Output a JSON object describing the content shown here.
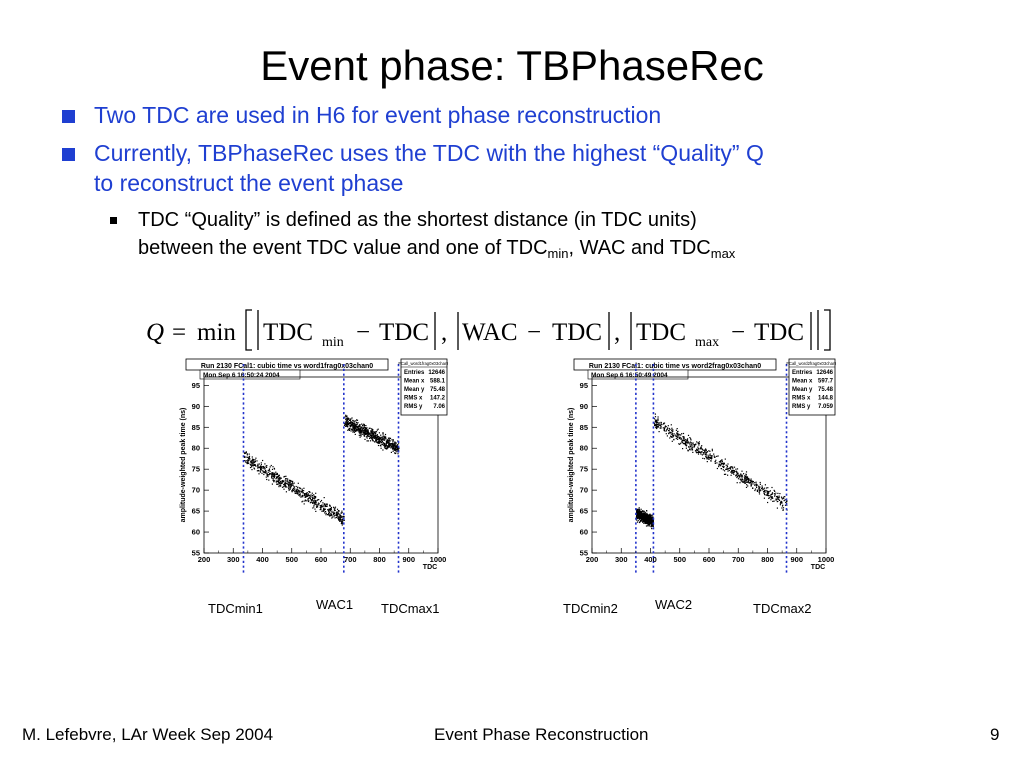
{
  "slide": {
    "title": "Event phase: TBPhaseRec",
    "bullet1": "Two TDC are used in H6 for event phase reconstruction",
    "bullet2_line1": "Currently, TBPhaseRec uses the TDC with the highest “Quality” Q",
    "bullet2_line2": "to reconstruct the event phase",
    "sub1_line1": "TDC “Quality” is defined as the shortest distance (in TDC units)",
    "sub1_line2_a": "between the event TDC value and one of TDC",
    "sub1_min": "min",
    "sub1_mid": ", WAC and TDC",
    "sub1_max": "max"
  },
  "formula": {
    "q": "Q",
    "eq": "=",
    "minfn": "min",
    "tdc": "TDC",
    "min": "min",
    "max": "max",
    "minus": "−",
    "wac": "WAC",
    "comma": ","
  },
  "plot1": {
    "title": "Run 2130 FCal1: cubic time vs word1frag0x03chan0",
    "date": "Mon Sep  6 16:50:24 2004",
    "stats_header": "FCall_word1frag0x03chan0",
    "stats": [
      {
        "k": "Entries",
        "v": "12646"
      },
      {
        "k": "Mean x",
        "v": "588.1"
      },
      {
        "k": "Mean y",
        "v": "75.48"
      },
      {
        "k": "RMS x",
        "v": "147.2"
      },
      {
        "k": "RMS y",
        "v": "7.06"
      }
    ],
    "ylabel": "amplitude-weighted peak time (ns)",
    "xlabel": "TDC",
    "labels": {
      "tdcmin": "TDCmin1",
      "wac": "WAC1",
      "tdcmax": "TDCmax1"
    },
    "lines_x": [
      335,
      678,
      865
    ],
    "segments": [
      {
        "x0": 335,
        "x1": 678,
        "y0": 78,
        "y1": 63,
        "sy": 1.6
      },
      {
        "x0": 678,
        "x1": 865,
        "y0": 86.5,
        "y1": 80,
        "sy": 1.4
      }
    ]
  },
  "plot2": {
    "title": "Run 2130 FCal1: cubic time vs word2frag0x03chan0",
    "date": "Mon Sep  6 16:50:49 2004",
    "stats_header": "FCall_word2frag0x03chan0",
    "stats": [
      {
        "k": "Entries",
        "v": "12646"
      },
      {
        "k": "Mean x",
        "v": "597.7"
      },
      {
        "k": "Mean y",
        "v": "75.48"
      },
      {
        "k": "RMS x",
        "v": "144.8"
      },
      {
        "k": "RMS y",
        "v": "7.059"
      }
    ],
    "ylabel": "amplitude-weighted peak time (ns)",
    "xlabel": "TDC",
    "labels": {
      "tdcmin": "TDCmin2",
      "wac": "WAC2",
      "tdcmax": "TDCmax2"
    },
    "lines_x": [
      350,
      410,
      865
    ],
    "segments": [
      {
        "x0": 350,
        "x1": 408,
        "y0": 64.5,
        "y1": 62.5,
        "sy": 1.2
      },
      {
        "x0": 410,
        "x1": 865,
        "y0": 86.5,
        "y1": 66.5,
        "sy": 1.5
      }
    ]
  },
  "axis": {
    "xticks": [
      "200",
      "300",
      "400",
      "500",
      "600",
      "700",
      "800",
      "900",
      "1000"
    ],
    "yticks": [
      "55",
      "60",
      "65",
      "70",
      "75",
      "80",
      "85",
      "90",
      "95"
    ],
    "xlim": [
      200,
      1000
    ],
    "ylim": [
      55,
      97
    ]
  },
  "footer": {
    "left": "M. Lefebvre, LAr Week Sep 2004",
    "center": "Event Phase Reconstruction",
    "page": "9"
  },
  "colors": {
    "accent": "#1f3fd1",
    "marker_line": "#2233cc",
    "points": "#000000"
  }
}
